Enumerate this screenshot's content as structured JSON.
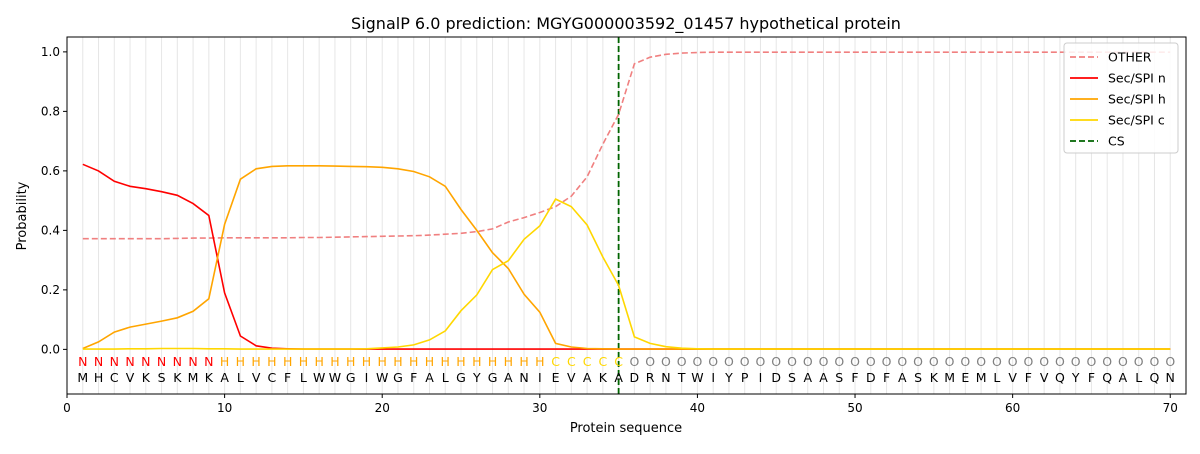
{
  "chart_data": {
    "type": "line",
    "title": "SignalP 6.0 prediction: MGYG000003592_01457 hypothetical protein",
    "xlabel": "Protein sequence",
    "ylabel": "Probability",
    "xlim": [
      0,
      71
    ],
    "ylim": [
      -0.15,
      1.05
    ],
    "x_ticks": [
      0,
      10,
      20,
      30,
      40,
      50,
      60,
      70
    ],
    "y_ticks": [
      0.0,
      0.2,
      0.4,
      0.6,
      0.8,
      1.0
    ],
    "grid": "vertical lines at every residue",
    "legend_placement": "top-right",
    "x": [
      1,
      2,
      3,
      4,
      5,
      6,
      7,
      8,
      9,
      10,
      11,
      12,
      13,
      14,
      15,
      16,
      17,
      18,
      19,
      20,
      21,
      22,
      23,
      24,
      25,
      26,
      27,
      28,
      29,
      30,
      31,
      32,
      33,
      34,
      35,
      36,
      37,
      38,
      39,
      40,
      41,
      42,
      43,
      44,
      45,
      46,
      47,
      48,
      49,
      50,
      51,
      52,
      53,
      54,
      55,
      56,
      57,
      58,
      59,
      60,
      61,
      62,
      63,
      64,
      65,
      66,
      67,
      68,
      69,
      70
    ],
    "sequence": [
      "M",
      "H",
      "C",
      "V",
      "K",
      "S",
      "K",
      "M",
      "K",
      "A",
      "L",
      "V",
      "C",
      "F",
      "L",
      "W",
      "W",
      "G",
      "I",
      "W",
      "G",
      "F",
      "A",
      "L",
      "G",
      "Y",
      "G",
      "A",
      "N",
      "I",
      "E",
      "V",
      "A",
      "K",
      "A",
      "D",
      "R",
      "N",
      "T",
      "W",
      "I",
      "Y",
      "P",
      "I",
      "D",
      "S",
      "A",
      "A",
      "S",
      "F",
      "D",
      "F",
      "A",
      "S",
      "K",
      "M",
      "E",
      "M",
      "L",
      "V",
      "F",
      "V",
      "Q",
      "Y",
      "F",
      "Q",
      "A",
      "L",
      "Q",
      "N"
    ],
    "region_labels": [
      "N",
      "N",
      "N",
      "N",
      "N",
      "N",
      "N",
      "N",
      "N",
      "H",
      "H",
      "H",
      "H",
      "H",
      "H",
      "H",
      "H",
      "H",
      "H",
      "H",
      "H",
      "H",
      "H",
      "H",
      "H",
      "H",
      "H",
      "H",
      "H",
      "H",
      "C",
      "C",
      "C",
      "C",
      "C",
      "O",
      "O",
      "O",
      "O",
      "O",
      "O",
      "O",
      "O",
      "O",
      "O",
      "O",
      "O",
      "O",
      "O",
      "O",
      "O",
      "O",
      "O",
      "O",
      "O",
      "O",
      "O",
      "O",
      "O",
      "O",
      "O",
      "O",
      "O",
      "O",
      "O",
      "O",
      "O",
      "O",
      "O",
      "O"
    ],
    "region_colors": {
      "N": "#ff0000",
      "H": "#ffa500",
      "C": "#ffd700",
      "O": "#808080"
    },
    "cleavage_site": 35,
    "series": [
      {
        "name": "OTHER",
        "color": "#f08080",
        "style": "dashed",
        "values": [
          0.372,
          0.372,
          0.372,
          0.372,
          0.372,
          0.372,
          0.373,
          0.374,
          0.374,
          0.375,
          0.375,
          0.375,
          0.375,
          0.375,
          0.376,
          0.376,
          0.377,
          0.378,
          0.379,
          0.38,
          0.381,
          0.382,
          0.384,
          0.387,
          0.39,
          0.396,
          0.405,
          0.428,
          0.443,
          0.46,
          0.48,
          0.515,
          0.58,
          0.69,
          0.79,
          0.96,
          0.982,
          0.992,
          0.996,
          0.998,
          0.999,
          0.999,
          0.999,
          0.999,
          0.999,
          0.999,
          0.999,
          0.999,
          0.999,
          0.999,
          0.999,
          0.999,
          0.999,
          0.999,
          0.999,
          0.999,
          0.999,
          0.999,
          0.999,
          0.999,
          0.999,
          0.999,
          0.999,
          0.999,
          0.999,
          0.999,
          0.999,
          0.999,
          0.999,
          0.999
        ]
      },
      {
        "name": "Sec/SPI n",
        "color": "#ff0000",
        "style": "solid",
        "values": [
          0.622,
          0.6,
          0.565,
          0.548,
          0.54,
          0.53,
          0.518,
          0.49,
          0.45,
          0.19,
          0.045,
          0.012,
          0.004,
          0.002,
          0.001,
          0.001,
          0.001,
          0.001,
          0.001,
          0.001,
          0.001,
          0.001,
          0.001,
          0.001,
          0.001,
          0.001,
          0.001,
          0.001,
          0.001,
          0.001,
          0.001,
          0.001,
          0.001,
          0.001,
          0.001,
          0.001,
          0.001,
          0.001,
          0.001,
          0.001,
          0.001,
          0.001,
          0.001,
          0.001,
          0.001,
          0.001,
          0.001,
          0.001,
          0.001,
          0.001,
          0.001,
          0.001,
          0.001,
          0.001,
          0.001,
          0.001,
          0.001,
          0.001,
          0.001,
          0.001,
          0.001,
          0.001,
          0.001,
          0.001,
          0.001,
          0.001,
          0.001,
          0.001,
          0.001,
          0.001
        ]
      },
      {
        "name": "Sec/SPI h",
        "color": "#ffa500",
        "style": "solid",
        "values": [
          0.003,
          0.025,
          0.058,
          0.075,
          0.085,
          0.095,
          0.106,
          0.128,
          0.17,
          0.42,
          0.572,
          0.607,
          0.615,
          0.617,
          0.617,
          0.617,
          0.616,
          0.615,
          0.614,
          0.612,
          0.607,
          0.598,
          0.58,
          0.548,
          0.47,
          0.4,
          0.325,
          0.272,
          0.185,
          0.125,
          0.02,
          0.008,
          0.003,
          0.002,
          0.001,
          0.001,
          0.001,
          0.001,
          0.001,
          0.001,
          0.001,
          0.001,
          0.001,
          0.001,
          0.001,
          0.001,
          0.001,
          0.001,
          0.001,
          0.001,
          0.001,
          0.001,
          0.001,
          0.001,
          0.001,
          0.001,
          0.001,
          0.001,
          0.001,
          0.001,
          0.001,
          0.001,
          0.001,
          0.001,
          0.001,
          0.001,
          0.001,
          0.001,
          0.001,
          0.001
        ]
      },
      {
        "name": "Sec/SPI c",
        "color": "#ffd700",
        "style": "solid",
        "values": [
          0.001,
          0.001,
          0.001,
          0.002,
          0.002,
          0.003,
          0.003,
          0.003,
          0.002,
          0.002,
          0.001,
          0.001,
          0.001,
          0.001,
          0.001,
          0.001,
          0.001,
          0.001,
          0.002,
          0.005,
          0.008,
          0.015,
          0.032,
          0.062,
          0.13,
          0.183,
          0.268,
          0.298,
          0.37,
          0.415,
          0.505,
          0.48,
          0.418,
          0.31,
          0.215,
          0.042,
          0.02,
          0.009,
          0.004,
          0.002,
          0.001,
          0.001,
          0.001,
          0.001,
          0.001,
          0.001,
          0.001,
          0.001,
          0.001,
          0.001,
          0.001,
          0.001,
          0.001,
          0.001,
          0.001,
          0.001,
          0.001,
          0.001,
          0.001,
          0.001,
          0.001,
          0.001,
          0.001,
          0.001,
          0.001,
          0.001,
          0.001,
          0.001,
          0.001,
          0.001
        ]
      }
    ],
    "cs_legend": {
      "name": "CS",
      "color": "#006400",
      "style": "dashed"
    }
  }
}
